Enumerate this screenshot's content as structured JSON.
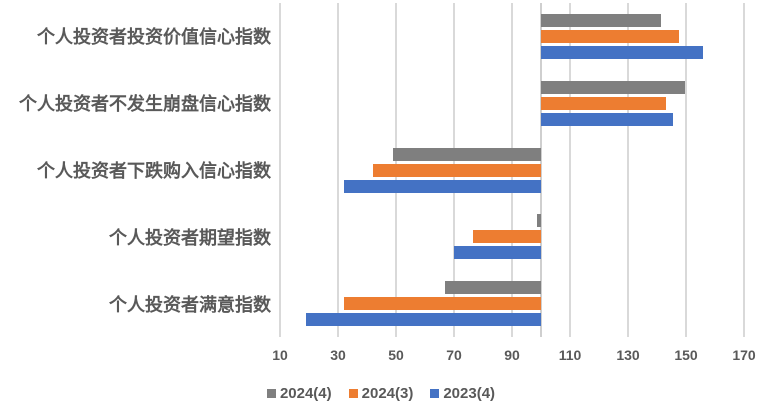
{
  "chart_data": {
    "type": "bar",
    "orientation": "horizontal",
    "title": "",
    "categories": [
      "个人投资者投资价值信心指数",
      "个人投资者不发生崩盘信心指数",
      "个人投资者下跌购入信心指数",
      "个人投资者期望指数",
      "个人投资者满意指数"
    ],
    "series": [
      {
        "name": "2024(4)",
        "color": "#7f7f7f",
        "values": [
          141.5,
          149.5,
          49,
          98.5,
          67
        ]
      },
      {
        "name": "2024(3)",
        "color": "#ed7d31",
        "values": [
          147.5,
          143,
          42,
          76.5,
          32
        ]
      },
      {
        "name": "2023(4)",
        "color": "#4472c4",
        "values": [
          156,
          145.5,
          32,
          70,
          19
        ]
      }
    ],
    "x_ticks": [
      10,
      30,
      50,
      70,
      90,
      110,
      130,
      150,
      170
    ],
    "xlim": [
      10,
      170
    ],
    "bar_base": 100,
    "grid": true,
    "legend_position": "bottom",
    "colors": {
      "background": "#ffffff",
      "gridline": "#d9d9d9",
      "axis_line": "#cfcfcf",
      "text": "#595959"
    }
  }
}
